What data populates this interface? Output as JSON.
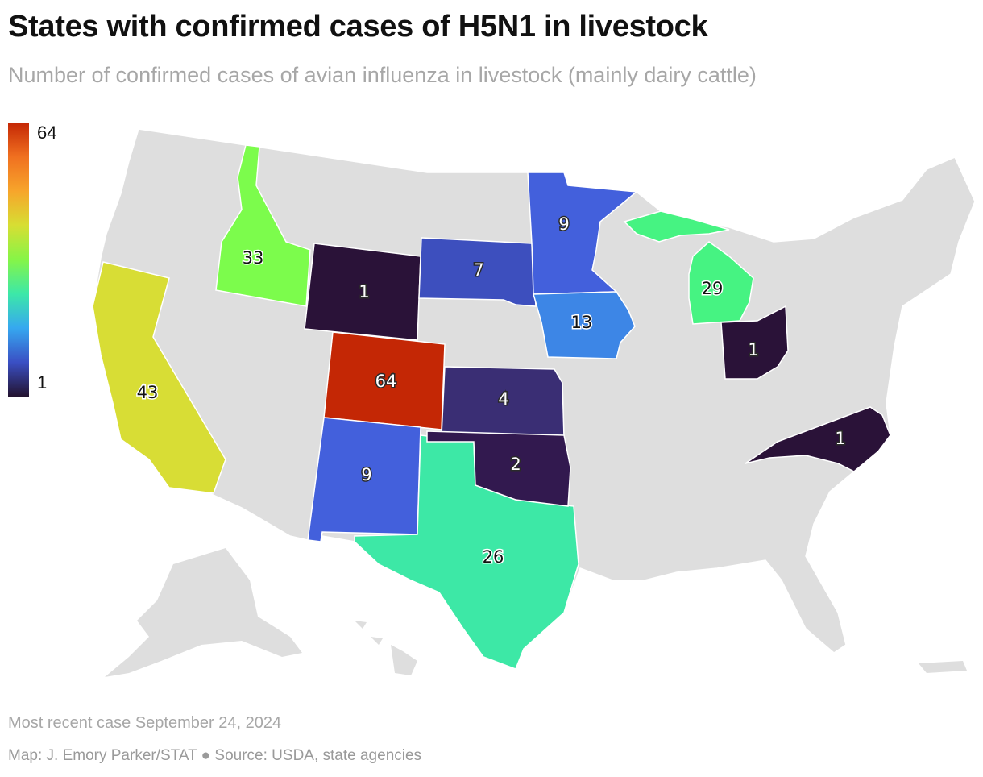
{
  "title": "States with confirmed cases of H5N1 in livestock",
  "subtitle": "Number of confirmed cases of avian influenza in livestock (mainly dairy cattle)",
  "legend": {
    "min": "1",
    "max": "64",
    "colors": [
      "#23132f",
      "#3a4fc4",
      "#36a8f0",
      "#3ce8a8",
      "#86f547",
      "#d7de33",
      "#f7a52b",
      "#f07020",
      "#c42705"
    ]
  },
  "base_color": "#dedede",
  "map_data": {
    "type": "choropleth",
    "region": "United States",
    "states": [
      {
        "state": "Colorado",
        "cases": 64,
        "label": "64",
        "color": "#c42705"
      },
      {
        "state": "California",
        "cases": 43,
        "label": "43",
        "color": "#d8dd35"
      },
      {
        "state": "Idaho",
        "cases": 33,
        "label": "33",
        "color": "#7cfc4c"
      },
      {
        "state": "Michigan",
        "cases": 29,
        "label": "29",
        "color": "#46f382"
      },
      {
        "state": "Texas",
        "cases": 26,
        "label": "26",
        "color": "#3de8a6"
      },
      {
        "state": "Iowa",
        "cases": 13,
        "label": "13",
        "color": "#3d86e6"
      },
      {
        "state": "Minnesota",
        "cases": 9,
        "label": "9",
        "color": "#4360dc"
      },
      {
        "state": "New Mexico",
        "cases": 9,
        "label": "9",
        "color": "#4360dc"
      },
      {
        "state": "South Dakota",
        "cases": 7,
        "label": "7",
        "color": "#3d4fbe"
      },
      {
        "state": "Kansas",
        "cases": 4,
        "label": "4",
        "color": "#3a2e74"
      },
      {
        "state": "Oklahoma",
        "cases": 2,
        "label": "2",
        "color": "#32194f"
      },
      {
        "state": "Wyoming",
        "cases": 1,
        "label": "1",
        "color": "#2a1238"
      },
      {
        "state": "Ohio",
        "cases": 1,
        "label": "1",
        "color": "#2a1238"
      },
      {
        "state": "North Carolina",
        "cases": 1,
        "label": "1",
        "color": "#2a1238"
      }
    ]
  },
  "footer": {
    "note": "Most recent case September 24, 2024",
    "credit": "Map: J. Emory Parker/STAT ● Source: USDA, state agencies"
  }
}
